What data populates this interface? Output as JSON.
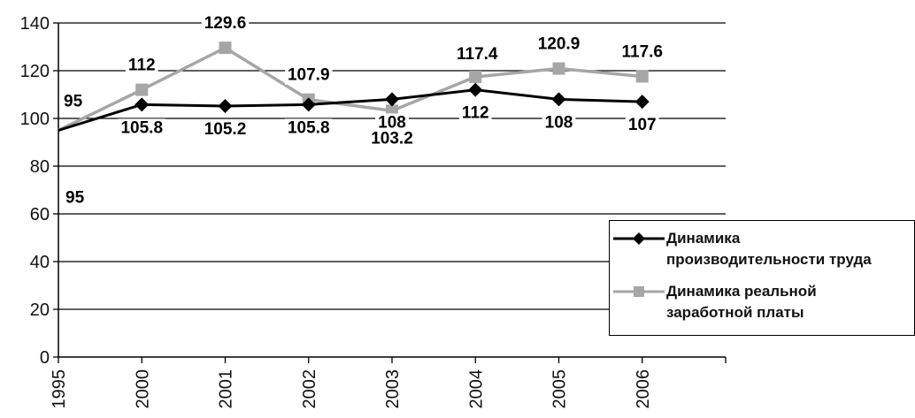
{
  "chart_data": {
    "type": "line",
    "categories": [
      "1995",
      "2000",
      "2001",
      "2002",
      "2003",
      "2004",
      "2005",
      "2006"
    ],
    "series": [
      {
        "name": "Динамика производительности труда",
        "values": [
          95,
          105.8,
          105.2,
          105.8,
          108,
          112,
          108,
          107
        ],
        "labels": [
          "95",
          "105.8",
          "105.2",
          "105.8",
          "108",
          "112",
          "108",
          "107"
        ],
        "color": "#000000"
      },
      {
        "name": "Динамика реальной заработной платы",
        "values": [
          95,
          112,
          129.6,
          107.9,
          103.2,
          117.4,
          120.9,
          117.6
        ],
        "labels": [
          "95",
          "112",
          "129.6",
          "107.9",
          "103.2",
          "117.4",
          "120.9",
          "117.6"
        ],
        "color": "#a6a6a6"
      }
    ],
    "ylim": [
      0,
      140
    ],
    "yticks": [
      0,
      20,
      40,
      60,
      80,
      100,
      120,
      140
    ],
    "grid": true,
    "legend_position": "right",
    "legend": {
      "item1_line1": "Динамика",
      "item1_line2": "производительности труда",
      "item2_line1": "Динамика реальной",
      "item2_line2": "заработной платы"
    },
    "title": "",
    "xlabel": "",
    "ylabel": ""
  }
}
